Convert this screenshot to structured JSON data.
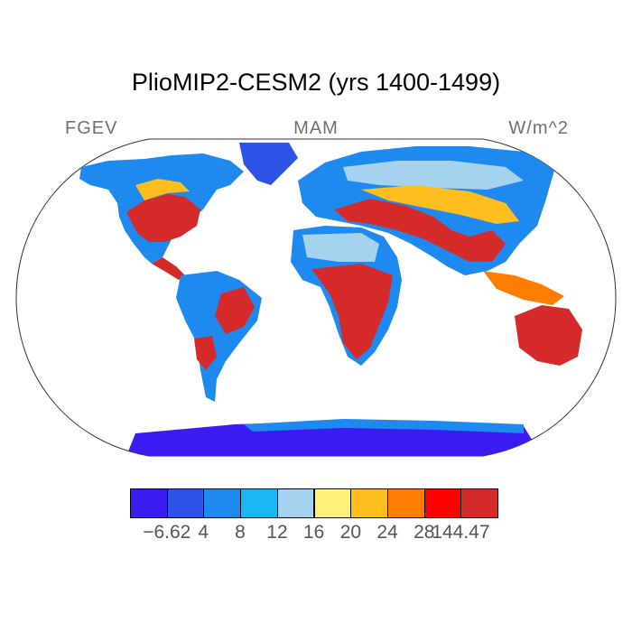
{
  "title": "PlioMIP2-CESM2 (yrs 1400-1499)",
  "left_label": "FGEV",
  "center_label": "MAM",
  "right_label": "W/m^2",
  "colorbar": {
    "colors": [
      "#3b1cf0",
      "#2c52e6",
      "#1e8af0",
      "#19b8f5",
      "#a5d3ef",
      "#fff07a",
      "#ffbe1e",
      "#ff7d00",
      "#ff0000",
      "#d42a2a"
    ],
    "labels": [
      "−6.62",
      "4",
      "8",
      "12",
      "16",
      "20",
      "24",
      "28",
      "144.47"
    ]
  }
}
